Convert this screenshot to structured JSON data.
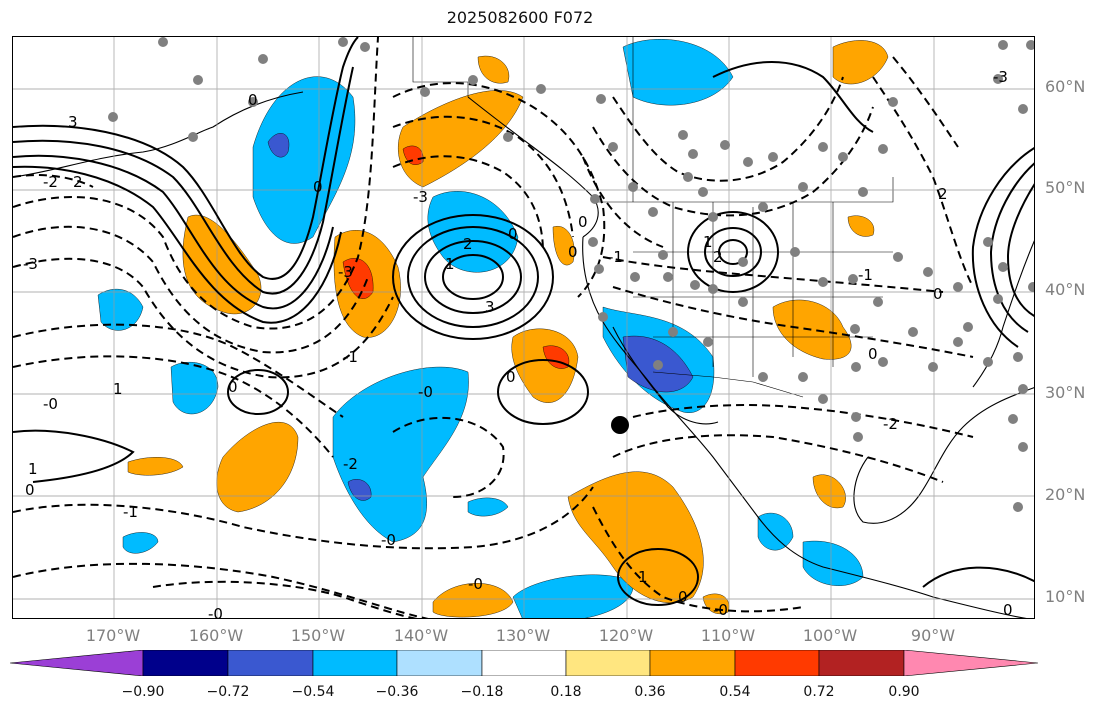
{
  "title": "2025082600 F072",
  "lat_labels": [
    "60°N",
    "50°N",
    "40°N",
    "30°N",
    "20°N",
    "10°N"
  ],
  "lon_labels": [
    "170°W",
    "160°W",
    "150°W",
    "140°W",
    "130°W",
    "120°W",
    "110°W",
    "100°W",
    "90°W"
  ],
  "colorbar": {
    "ticks": [
      "−0.90",
      "−0.72",
      "−0.54",
      "−0.36",
      "−0.18",
      "0.18",
      "0.36",
      "0.54",
      "0.72",
      "0.90"
    ],
    "colors": [
      "#9b3fd6",
      "#00008b",
      "#3a58d0",
      "#00bbff",
      "#aee0ff",
      "#ffffff",
      "#ffe680",
      "#ffa500",
      "#ff3a00",
      "#b22222",
      "#ff88b0"
    ]
  },
  "contour_labels": [
    "3",
    "2",
    "-2",
    "-3",
    "1",
    "-1",
    "0"
  ],
  "marker": "black-dot"
}
